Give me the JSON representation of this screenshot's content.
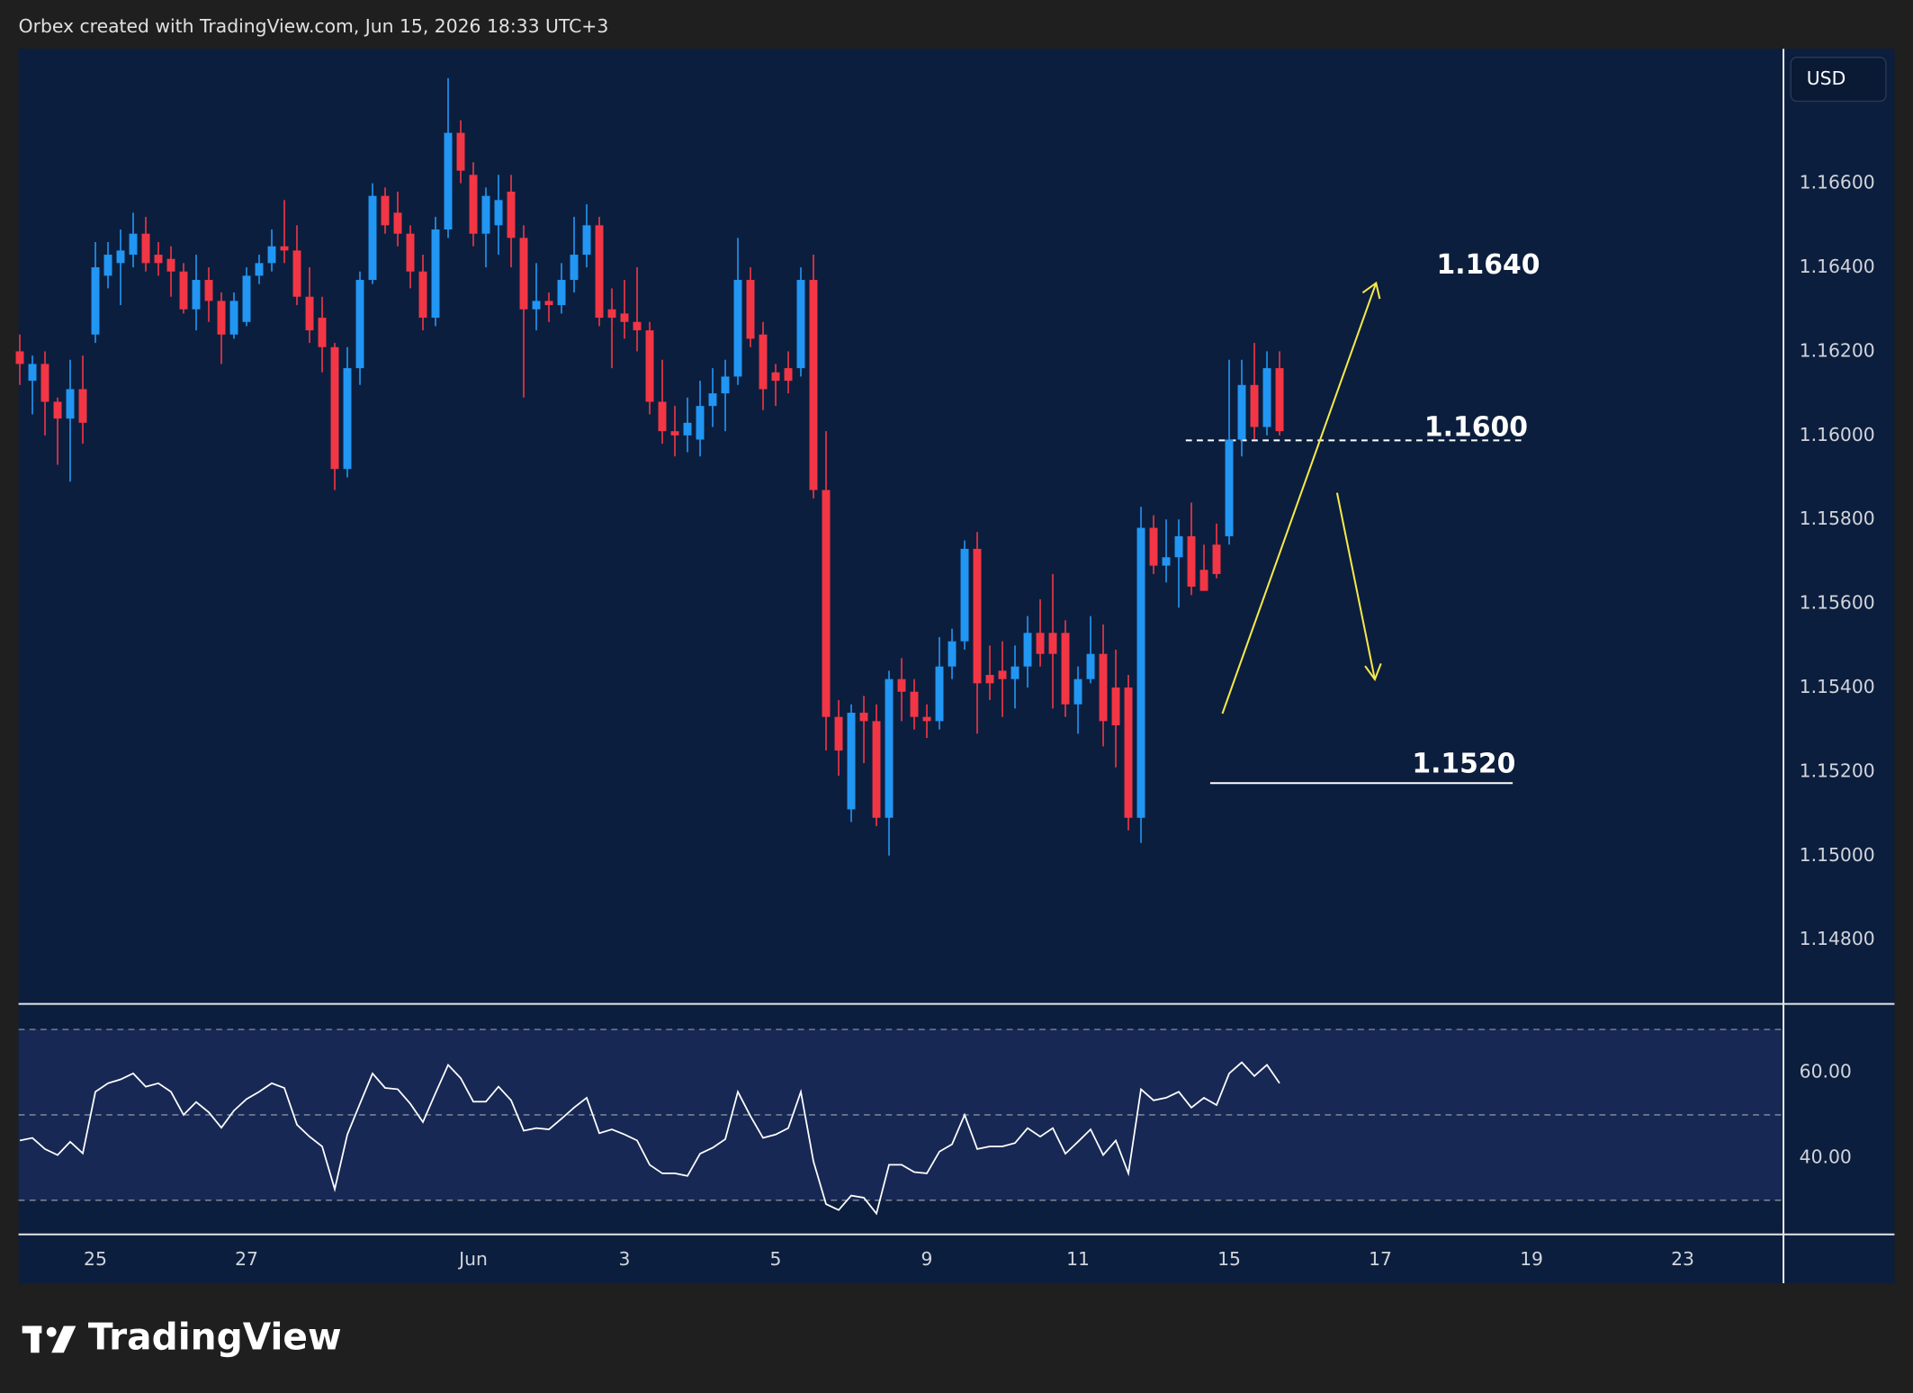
{
  "header": "Orbex created with TradingView.com, Jun 15, 2026 18:33 UTC+3",
  "currency": "USD",
  "brand": "TradingView",
  "chart_data": [
    {
      "type": "candlestick",
      "up_color": "#2196f3",
      "down_color": "#f23645",
      "open": [
        1.162,
        1.1613,
        1.1617,
        1.1608,
        1.1604,
        1.1611,
        1.1624,
        1.1638,
        1.1641,
        1.1643,
        1.1648,
        1.1643,
        1.1642,
        1.1639,
        1.163,
        1.1637,
        1.1632,
        1.1624,
        1.1627,
        1.1638,
        1.1641,
        1.1645,
        1.1644,
        1.1633,
        1.1628,
        1.1621,
        1.1592,
        1.1616,
        1.1637,
        1.1657,
        1.1653,
        1.1648,
        1.1639,
        1.1628,
        1.1649,
        1.1672,
        1.1662,
        1.1648,
        1.165,
        1.1658,
        1.1647,
        1.163,
        1.1632,
        1.1631,
        1.1637,
        1.1643,
        1.165,
        1.163,
        1.1629,
        1.1627,
        1.1625,
        1.1608,
        1.1601,
        1.16,
        1.1599,
        1.1607,
        1.161,
        1.1614,
        1.1637,
        1.1624,
        1.1615,
        1.1616,
        1.1616,
        1.1637,
        1.1587,
        1.1533,
        1.1511,
        1.1534,
        1.1532,
        1.1509,
        1.1542,
        1.1539,
        1.1533,
        1.1532,
        1.1545,
        1.1551,
        1.1573,
        1.1543,
        1.1544,
        1.1542,
        1.1545,
        1.1553,
        1.1553,
        1.1553,
        1.1536,
        1.1542,
        1.1548,
        1.154,
        1.154,
        1.1509,
        1.1578,
        1.1569,
        1.1571,
        1.1576,
        1.1568,
        1.1574,
        1.1576,
        1.1599,
        1.1612,
        1.1602,
        1.1616
      ],
      "high": [
        1.1624,
        1.1619,
        1.162,
        1.1609,
        1.1618,
        1.1619,
        1.1646,
        1.1646,
        1.1649,
        1.1653,
        1.1652,
        1.1646,
        1.1645,
        1.1641,
        1.1643,
        1.164,
        1.1634,
        1.1634,
        1.164,
        1.1643,
        1.1649,
        1.1656,
        1.165,
        1.164,
        1.1633,
        1.1622,
        1.1621,
        1.1639,
        1.166,
        1.1659,
        1.1658,
        1.165,
        1.1643,
        1.1652,
        1.1685,
        1.1675,
        1.1665,
        1.1659,
        1.1662,
        1.1662,
        1.165,
        1.1641,
        1.1634,
        1.1641,
        1.1652,
        1.1655,
        1.1652,
        1.1635,
        1.1637,
        1.164,
        1.1627,
        1.1618,
        1.1607,
        1.1609,
        1.1613,
        1.1616,
        1.1618,
        1.1647,
        1.164,
        1.1627,
        1.1617,
        1.162,
        1.164,
        1.1643,
        1.1601,
        1.1537,
        1.1536,
        1.1538,
        1.1536,
        1.1544,
        1.1547,
        1.1542,
        1.1536,
        1.1552,
        1.1554,
        1.1575,
        1.1577,
        1.155,
        1.1551,
        1.155,
        1.1557,
        1.1561,
        1.1567,
        1.1556,
        1.1545,
        1.1557,
        1.1555,
        1.1549,
        1.1543,
        1.1583,
        1.1581,
        1.158,
        1.158,
        1.1584,
        1.1574,
        1.1579,
        1.1618,
        1.1618,
        1.1622,
        1.162,
        1.162
      ],
      "low": [
        1.1612,
        1.1605,
        1.16,
        1.1593,
        1.1589,
        1.1598,
        1.1622,
        1.1635,
        1.1631,
        1.164,
        1.1639,
        1.1638,
        1.1633,
        1.1629,
        1.1625,
        1.1627,
        1.1617,
        1.1623,
        1.1626,
        1.1636,
        1.1639,
        1.1641,
        1.1631,
        1.1622,
        1.1615,
        1.1587,
        1.159,
        1.1612,
        1.1636,
        1.1648,
        1.1645,
        1.1635,
        1.1625,
        1.1626,
        1.1647,
        1.166,
        1.1645,
        1.164,
        1.1643,
        1.164,
        1.1609,
        1.1625,
        1.1627,
        1.1629,
        1.1634,
        1.164,
        1.1626,
        1.1616,
        1.1623,
        1.162,
        1.1605,
        1.1598,
        1.1595,
        1.1596,
        1.1595,
        1.1602,
        1.1601,
        1.1612,
        1.1621,
        1.1606,
        1.1607,
        1.161,
        1.1614,
        1.1585,
        1.1525,
        1.1519,
        1.1508,
        1.1522,
        1.1507,
        1.15,
        1.1532,
        1.153,
        1.1528,
        1.153,
        1.1542,
        1.1549,
        1.1529,
        1.1537,
        1.1533,
        1.1535,
        1.154,
        1.1545,
        1.1535,
        1.1533,
        1.1529,
        1.1541,
        1.1526,
        1.1521,
        1.1506,
        1.1503,
        1.1567,
        1.1565,
        1.1559,
        1.1562,
        1.1563,
        1.1566,
        1.1574,
        1.1595,
        1.1599,
        1.16,
        1.16
      ],
      "close": [
        1.1617,
        1.1617,
        1.1608,
        1.1604,
        1.1611,
        1.1603,
        1.164,
        1.1643,
        1.1644,
        1.1648,
        1.1641,
        1.1641,
        1.1639,
        1.163,
        1.1637,
        1.1632,
        1.1624,
        1.1632,
        1.1638,
        1.1641,
        1.1645,
        1.1644,
        1.1633,
        1.1625,
        1.1621,
        1.1592,
        1.1616,
        1.1637,
        1.1657,
        1.165,
        1.1648,
        1.1639,
        1.1628,
        1.1649,
        1.1672,
        1.1663,
        1.1648,
        1.1657,
        1.1656,
        1.1647,
        1.163,
        1.1632,
        1.1631,
        1.1637,
        1.1643,
        1.165,
        1.1628,
        1.1628,
        1.1627,
        1.1625,
        1.1608,
        1.1601,
        1.16,
        1.1603,
        1.1607,
        1.161,
        1.1614,
        1.1637,
        1.1623,
        1.1611,
        1.1613,
        1.1613,
        1.1637,
        1.1587,
        1.1533,
        1.1525,
        1.1534,
        1.1532,
        1.1509,
        1.1542,
        1.1539,
        1.1533,
        1.1532,
        1.1545,
        1.1551,
        1.1573,
        1.1541,
        1.1541,
        1.1542,
        1.1545,
        1.1553,
        1.1548,
        1.1548,
        1.1536,
        1.1542,
        1.1548,
        1.1532,
        1.1531,
        1.1509,
        1.1578,
        1.1569,
        1.1571,
        1.1576,
        1.1564,
        1.1563,
        1.1567,
        1.1599,
        1.1612,
        1.1602,
        1.1616,
        1.1601
      ],
      "xlim": [
        -0.1,
        140
      ],
      "xticks": [
        {
          "value": 6,
          "label": "25"
        },
        {
          "value": 18,
          "label": "27"
        },
        {
          "value": 36,
          "label": "Jun"
        },
        {
          "value": 48,
          "label": "3"
        },
        {
          "value": 60,
          "label": "5"
        },
        {
          "value": 72,
          "label": "9"
        },
        {
          "value": 84,
          "label": "11"
        },
        {
          "value": 96,
          "label": "15"
        },
        {
          "value": 108,
          "label": "17"
        },
        {
          "value": 120,
          "label": "19"
        },
        {
          "value": 132,
          "label": "23"
        }
      ],
      "ylim": [
        1.1465,
        1.1692
      ],
      "yticks": [
        {
          "value": 1.166,
          "label": "1.16600"
        },
        {
          "value": 1.164,
          "label": "1.16400"
        },
        {
          "value": 1.162,
          "label": "1.16200"
        },
        {
          "value": 1.16,
          "label": "1.16000"
        },
        {
          "value": 1.158,
          "label": "1.15800"
        },
        {
          "value": 1.156,
          "label": "1.15600"
        },
        {
          "value": 1.154,
          "label": "1.15400"
        },
        {
          "value": 1.152,
          "label": "1.15200"
        },
        {
          "value": 1.15,
          "label": "1.15000"
        },
        {
          "value": 1.148,
          "label": "1.14800"
        }
      ],
      "annotations": [
        "1.1640",
        "1.1600",
        "1.1520"
      ]
    },
    {
      "type": "line",
      "color": "#ffffff",
      "values": [
        44,
        44.6,
        42,
        40.6,
        43.7,
        41,
        55.4,
        57.4,
        58.3,
        59.7,
        56.6,
        57.4,
        55.4,
        50,
        53,
        50.6,
        47,
        51,
        53.7,
        55.4,
        57.4,
        56.3,
        47.7,
        44.9,
        42.6,
        32.6,
        45.4,
        52.6,
        59.7,
        56.3,
        56,
        52.6,
        48.3,
        55.1,
        61.7,
        58.6,
        53.1,
        53.1,
        56.6,
        53.4,
        46.3,
        46.9,
        46.6,
        49.1,
        51.7,
        54,
        45.7,
        46.6,
        45.4,
        44,
        38.3,
        36.3,
        36.3,
        35.7,
        40.9,
        42.3,
        44.3,
        55.4,
        49.7,
        44.6,
        45.4,
        46.9,
        55.4,
        39.1,
        29.1,
        27.7,
        31.1,
        30.6,
        26.9,
        38.3,
        38.3,
        36.6,
        36.3,
        41.4,
        43.1,
        50,
        42,
        42.6,
        42.6,
        43.4,
        46.9,
        44.9,
        46.9,
        40.9,
        43.7,
        46.6,
        40.6,
        44,
        36.3,
        56,
        53.4,
        54,
        55.4,
        51.7,
        54,
        52.3,
        59.7,
        62.3,
        59.1,
        61.7,
        57.4
      ],
      "ylim": [
        22,
        75.7
      ],
      "yticks": [
        {
          "value": 60,
          "label": "60.00"
        },
        {
          "value": 40,
          "label": "40.00"
        }
      ],
      "levels": [
        70,
        50,
        30
      ]
    }
  ]
}
